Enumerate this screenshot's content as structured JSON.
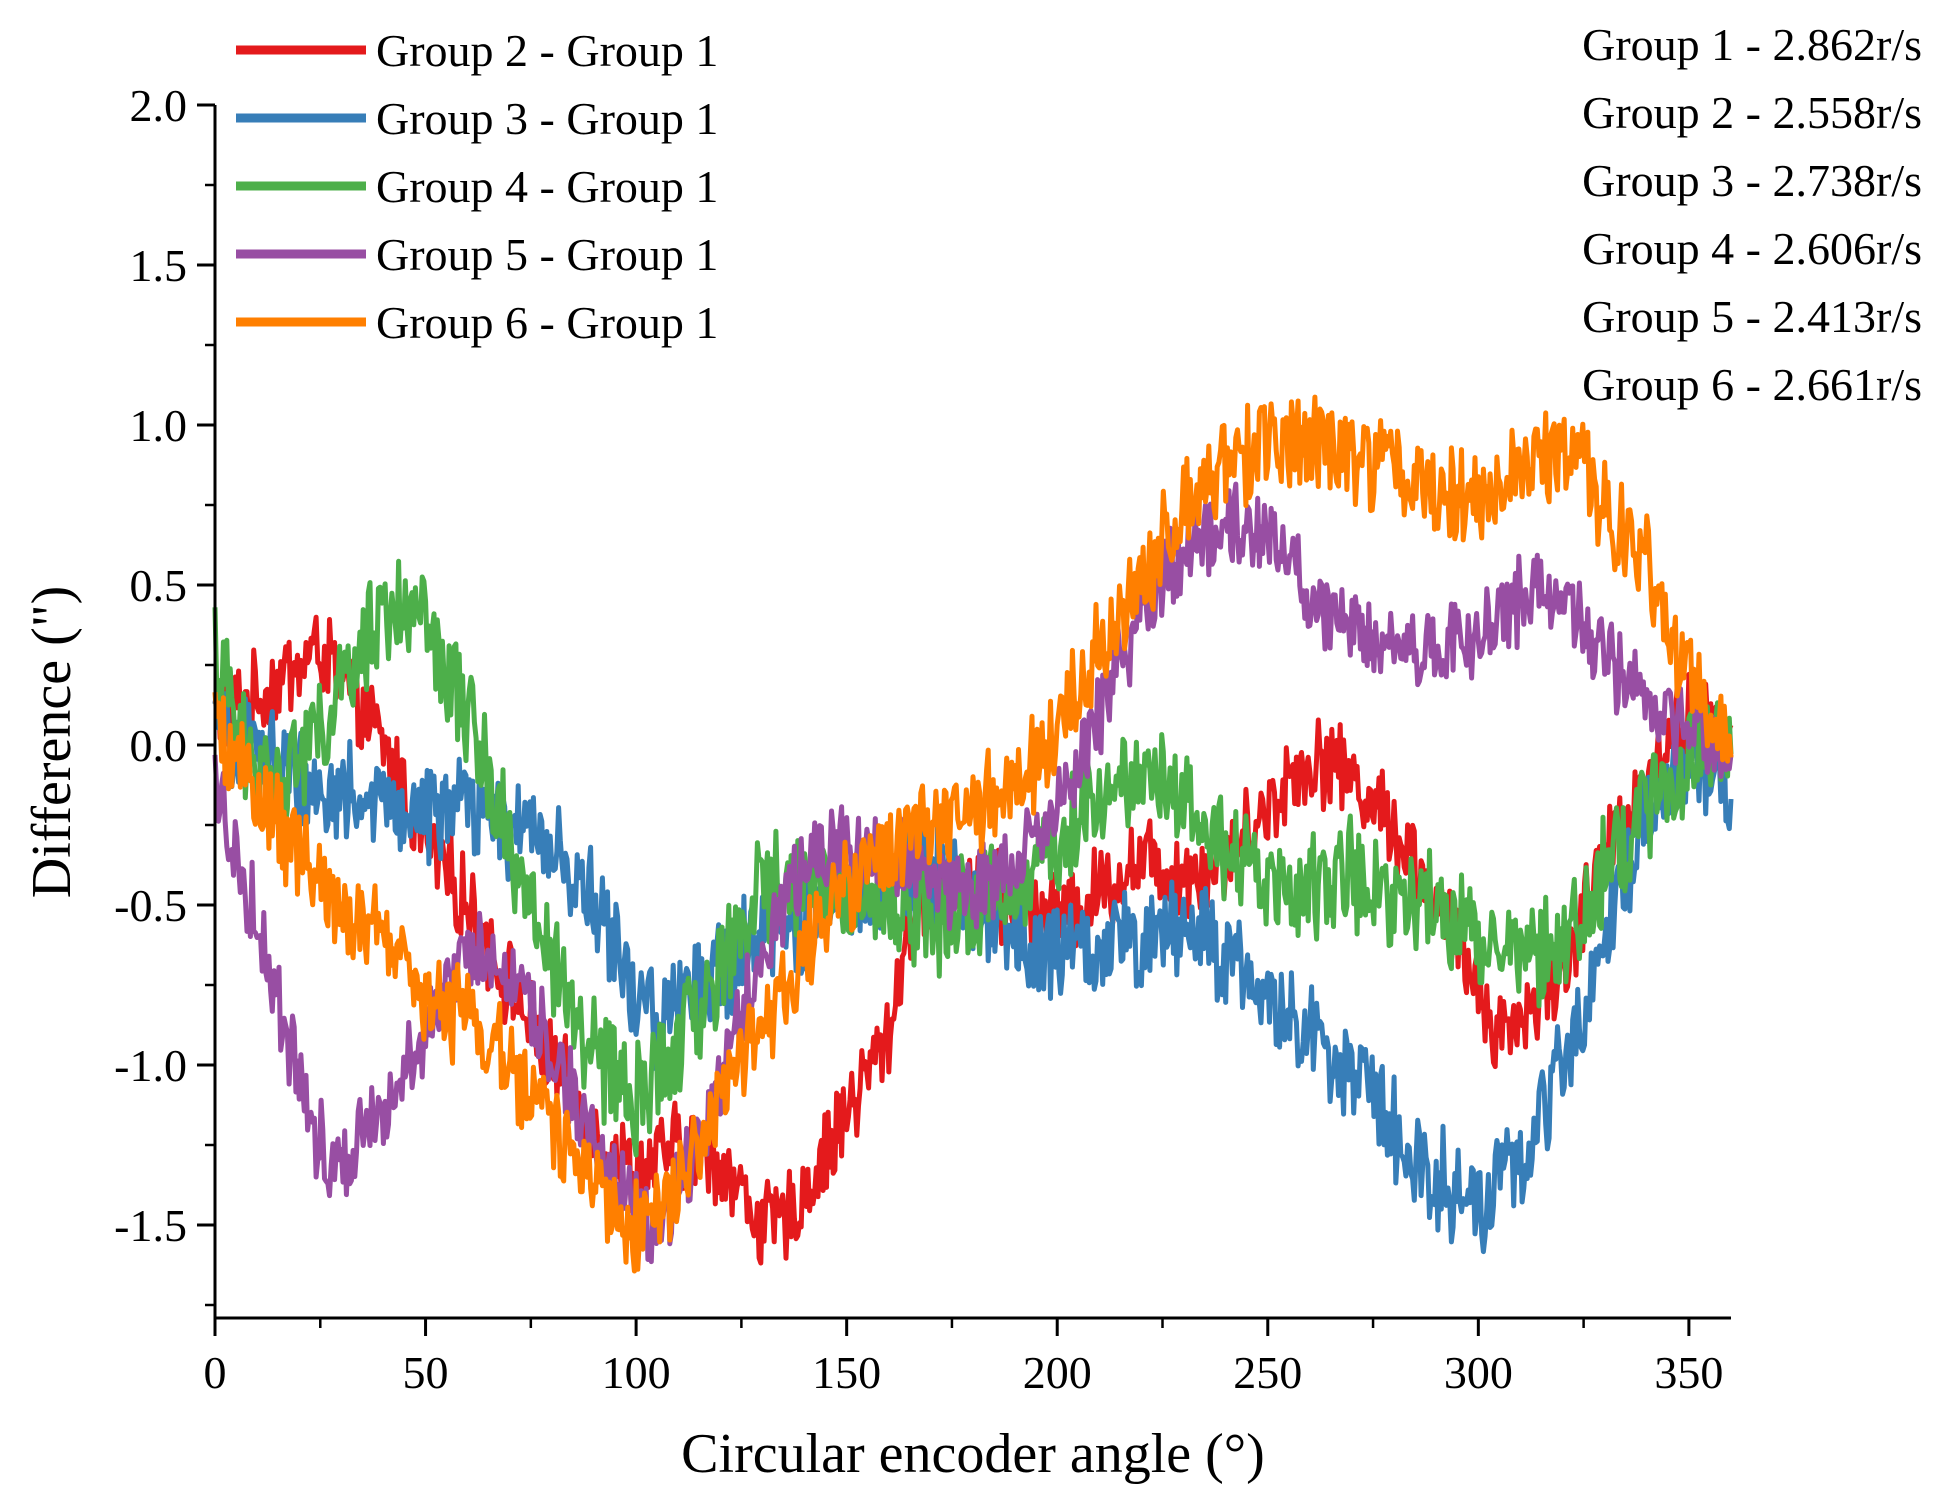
{
  "chart_data": {
    "type": "line",
    "title": "",
    "xlabel": "Circular encoder angle (°)",
    "ylabel": "Difference (\")",
    "xlim": [
      0,
      360
    ],
    "ylim": [
      -1.8,
      2.0
    ],
    "x_ticks": [
      "0",
      "50",
      "100",
      "150",
      "200",
      "250",
      "300",
      "350"
    ],
    "y_ticks": [
      "2.0",
      "1.5",
      "1.0",
      "0.5",
      "0.0",
      "-0.5",
      "-1.0",
      "-1.5"
    ],
    "grid": false,
    "legend_position": "top-left",
    "speed_labels": [
      "Group 1 - 2.862r/s",
      "Group 2 - 2.558r/s",
      "Group 3 - 2.738r/s",
      "Group 4 - 2.606r/s",
      "Group 5 - 2.413r/s",
      "Group 6 - 2.661r/s"
    ],
    "series": [
      {
        "name": "Group 2 - Group 1",
        "color": "#e41a1c",
        "noise": 0.12,
        "x": [
          0,
          10,
          20,
          25,
          30,
          40,
          50,
          60,
          70,
          80,
          90,
          100,
          105,
          110,
          120,
          125,
          130,
          135,
          140,
          150,
          160,
          165,
          170,
          180,
          190,
          200,
          210,
          220,
          230,
          240,
          250,
          255,
          260,
          265,
          270,
          280,
          290,
          300,
          305,
          310,
          320,
          330,
          340,
          350,
          360
        ],
        "y": [
          0.1,
          0.15,
          0.25,
          0.3,
          0.2,
          0.0,
          -0.3,
          -0.5,
          -0.75,
          -1.0,
          -1.2,
          -1.35,
          -1.3,
          -1.25,
          -1.3,
          -1.4,
          -1.5,
          -1.5,
          -1.4,
          -1.15,
          -0.9,
          -0.55,
          -0.45,
          -0.45,
          -0.5,
          -0.55,
          -0.45,
          -0.35,
          -0.4,
          -0.35,
          -0.2,
          -0.1,
          -0.05,
          -0.05,
          -0.1,
          -0.25,
          -0.5,
          -0.75,
          -0.9,
          -0.85,
          -0.7,
          -0.35,
          -0.1,
          0.1,
          0.0
        ]
      },
      {
        "name": "Group 3 - Group 1",
        "color": "#377eb8",
        "noise": 0.14,
        "x": [
          0,
          10,
          20,
          30,
          40,
          50,
          60,
          70,
          80,
          90,
          100,
          105,
          110,
          120,
          130,
          140,
          150,
          160,
          170,
          180,
          190,
          200,
          210,
          220,
          230,
          240,
          250,
          260,
          270,
          280,
          290,
          300,
          310,
          320,
          330,
          340,
          350,
          360
        ],
        "y": [
          0.05,
          0.0,
          -0.1,
          -0.15,
          -0.2,
          -0.2,
          -0.2,
          -0.25,
          -0.3,
          -0.5,
          -0.8,
          -0.85,
          -0.8,
          -0.7,
          -0.6,
          -0.55,
          -0.45,
          -0.4,
          -0.4,
          -0.5,
          -0.6,
          -0.65,
          -0.65,
          -0.6,
          -0.55,
          -0.65,
          -0.8,
          -0.9,
          -1.0,
          -1.2,
          -1.35,
          -1.45,
          -1.3,
          -1.0,
          -0.6,
          -0.2,
          -0.05,
          -0.15
        ]
      },
      {
        "name": "Group 4 - Group 1",
        "color": "#4daf4a",
        "noise": 0.15,
        "x": [
          0,
          5,
          10,
          20,
          30,
          35,
          40,
          45,
          50,
          60,
          70,
          80,
          90,
          95,
          100,
          105,
          110,
          120,
          130,
          140,
          150,
          160,
          170,
          180,
          190,
          200,
          210,
          220,
          230,
          240,
          250,
          260,
          270,
          280,
          290,
          300,
          310,
          320,
          330,
          340,
          350,
          360
        ],
        "y": [
          0.3,
          0.05,
          -0.1,
          -0.05,
          0.15,
          0.3,
          0.45,
          0.4,
          0.35,
          0.1,
          -0.3,
          -0.7,
          -0.95,
          -1.05,
          -1.1,
          -1.05,
          -0.95,
          -0.7,
          -0.45,
          -0.4,
          -0.45,
          -0.5,
          -0.55,
          -0.5,
          -0.45,
          -0.3,
          -0.15,
          -0.05,
          -0.15,
          -0.3,
          -0.45,
          -0.45,
          -0.4,
          -0.45,
          -0.5,
          -0.6,
          -0.65,
          -0.6,
          -0.4,
          -0.2,
          -0.05,
          0.0
        ]
      },
      {
        "name": "Group 5 - Group 1",
        "color": "#984ea3",
        "noise": 0.12,
        "x": [
          0,
          5,
          10,
          15,
          20,
          25,
          30,
          35,
          40,
          50,
          60,
          70,
          80,
          90,
          100,
          105,
          110,
          120,
          130,
          140,
          150,
          160,
          170,
          180,
          190,
          200,
          210,
          220,
          230,
          240,
          250,
          255,
          260,
          270,
          280,
          290,
          300,
          310,
          315,
          320,
          330,
          340,
          350,
          360
        ],
        "y": [
          -0.1,
          -0.35,
          -0.55,
          -0.8,
          -1.05,
          -1.25,
          -1.3,
          -1.2,
          -1.1,
          -0.9,
          -0.65,
          -0.7,
          -0.95,
          -1.25,
          -1.45,
          -1.5,
          -1.4,
          -1.05,
          -0.65,
          -0.35,
          -0.3,
          -0.35,
          -0.4,
          -0.45,
          -0.4,
          -0.2,
          0.1,
          0.4,
          0.6,
          0.7,
          0.65,
          0.6,
          0.45,
          0.35,
          0.3,
          0.3,
          0.35,
          0.45,
          0.5,
          0.45,
          0.3,
          0.1,
          0.05,
          0.0
        ]
      },
      {
        "name": "Group 6 - Group 1",
        "color": "#ff7f00",
        "noise": 0.13,
        "x": [
          0,
          10,
          20,
          30,
          40,
          50,
          60,
          70,
          80,
          90,
          100,
          105,
          110,
          120,
          130,
          140,
          150,
          160,
          170,
          180,
          190,
          200,
          210,
          220,
          230,
          240,
          250,
          260,
          270,
          280,
          290,
          300,
          310,
          320,
          325,
          330,
          340,
          350,
          360
        ],
        "y": [
          0.05,
          -0.15,
          -0.35,
          -0.5,
          -0.6,
          -0.8,
          -0.85,
          -1.0,
          -1.2,
          -1.35,
          -1.5,
          -1.45,
          -1.35,
          -1.1,
          -0.9,
          -0.65,
          -0.45,
          -0.35,
          -0.25,
          -0.2,
          -0.15,
          0.05,
          0.3,
          0.5,
          0.75,
          0.85,
          0.95,
          0.95,
          0.9,
          0.85,
          0.8,
          0.75,
          0.85,
          0.9,
          0.85,
          0.75,
          0.55,
          0.2,
          0.0
        ]
      }
    ]
  }
}
